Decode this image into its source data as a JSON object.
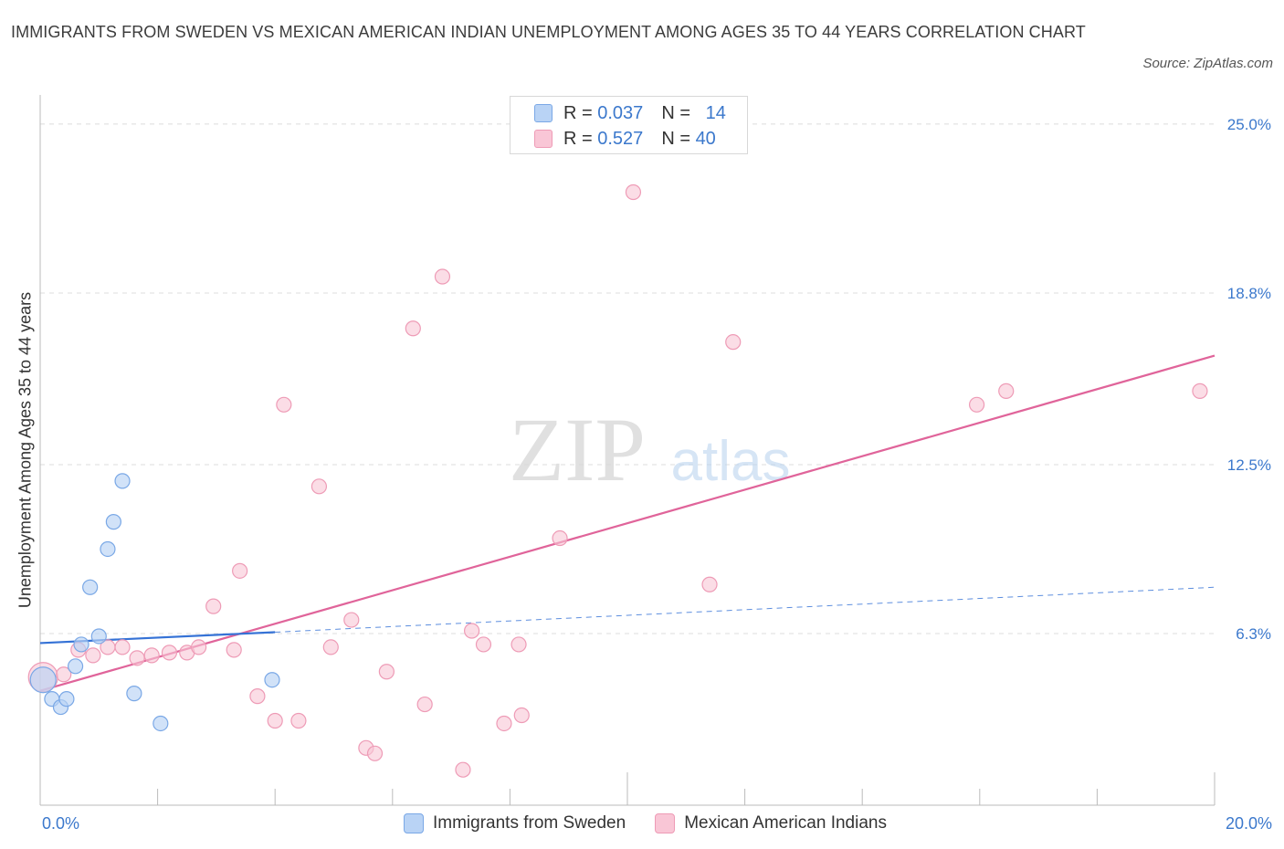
{
  "title": "IMMIGRANTS FROM SWEDEN VS MEXICAN AMERICAN INDIAN UNEMPLOYMENT AMONG AGES 35 TO 44 YEARS CORRELATION CHART",
  "source": "Source: ZipAtlas.com",
  "watermark": {
    "zip": "ZIP",
    "atlas": "atlas"
  },
  "legend_top": {
    "rows": [
      {
        "r_label": "R =",
        "r_value": "0.037",
        "n_label": "N =",
        "n_value": "14"
      },
      {
        "r_label": "R =",
        "r_value": "0.527",
        "n_label": "N =",
        "n_value": "40"
      }
    ]
  },
  "colors": {
    "blue_fill": "#b9d3f5",
    "blue_stroke": "#7aa8e6",
    "blue_line": "#3572d6",
    "pink_fill": "#f9c6d6",
    "pink_stroke": "#ee9bb6",
    "pink_line": "#e0649a",
    "accent_text": "#3b78cc",
    "grid": "#dcdcdc"
  },
  "chart_data": {
    "type": "scatter",
    "title": "IMMIGRANTS FROM SWEDEN VS MEXICAN AMERICAN INDIAN UNEMPLOYMENT AMONG AGES 35 TO 44 YEARS CORRELATION CHART",
    "xlabel": "",
    "ylabel": "Unemployment Among Ages 35 to 44 years",
    "xlim": [
      0,
      20
    ],
    "ylim": [
      0,
      25.6
    ],
    "x_tick_labels": [
      "0.0%",
      "20.0%"
    ],
    "y_ticks": [
      6.3,
      12.5,
      18.8,
      25.0
    ],
    "y_tick_labels": [
      "6.3%",
      "12.5%",
      "18.8%",
      "25.0%"
    ],
    "grid": true,
    "legend_position": "bottom-center",
    "series": [
      {
        "name": "Immigrants from Sweden",
        "color": "blue",
        "R": 0.037,
        "N": 14,
        "points": [
          [
            0.05,
            4.6
          ],
          [
            0.2,
            3.9
          ],
          [
            0.35,
            3.6
          ],
          [
            0.45,
            3.9
          ],
          [
            0.6,
            5.1
          ],
          [
            0.7,
            5.9
          ],
          [
            0.85,
            8.0
          ],
          [
            1.0,
            6.2
          ],
          [
            1.15,
            9.4
          ],
          [
            1.25,
            10.4
          ],
          [
            1.4,
            11.9
          ],
          [
            1.6,
            4.1
          ],
          [
            2.05,
            3.0
          ],
          [
            3.95,
            4.6
          ]
        ],
        "trend_solid": [
          [
            0,
            5.95
          ],
          [
            4.0,
            6.35
          ]
        ],
        "trend_dashed": [
          [
            4.0,
            6.35
          ],
          [
            20,
            8.0
          ]
        ]
      },
      {
        "name": "Mexican American Indians",
        "color": "pink",
        "R": 0.527,
        "N": 40,
        "points": [
          [
            0.05,
            4.7
          ],
          [
            0.4,
            4.8
          ],
          [
            0.65,
            5.7
          ],
          [
            0.9,
            5.5
          ],
          [
            1.15,
            5.8
          ],
          [
            1.4,
            5.8
          ],
          [
            1.65,
            5.4
          ],
          [
            1.9,
            5.5
          ],
          [
            2.2,
            5.6
          ],
          [
            2.5,
            5.6
          ],
          [
            2.7,
            5.8
          ],
          [
            2.95,
            7.3
          ],
          [
            3.3,
            5.7
          ],
          [
            3.4,
            8.6
          ],
          [
            3.7,
            4.0
          ],
          [
            4.0,
            3.1
          ],
          [
            4.15,
            14.7
          ],
          [
            4.4,
            3.1
          ],
          [
            4.75,
            11.7
          ],
          [
            4.95,
            5.8
          ],
          [
            5.3,
            6.8
          ],
          [
            5.55,
            2.1
          ],
          [
            5.7,
            1.9
          ],
          [
            5.9,
            4.9
          ],
          [
            6.35,
            17.5
          ],
          [
            6.55,
            3.7
          ],
          [
            6.85,
            19.4
          ],
          [
            7.2,
            1.3
          ],
          [
            7.35,
            6.4
          ],
          [
            7.55,
            5.9
          ],
          [
            7.9,
            3.0
          ],
          [
            8.15,
            5.9
          ],
          [
            8.2,
            3.3
          ],
          [
            8.85,
            9.8
          ],
          [
            10.1,
            22.5
          ],
          [
            11.4,
            8.1
          ],
          [
            11.8,
            17.0
          ],
          [
            15.95,
            14.7
          ],
          [
            16.45,
            15.2
          ],
          [
            19.75,
            15.2
          ]
        ],
        "trend": [
          [
            0,
            4.2
          ],
          [
            20,
            16.5
          ]
        ]
      }
    ]
  },
  "legend_bottom": {
    "items": [
      {
        "label": "Immigrants from Sweden"
      },
      {
        "label": "Mexican American Indians"
      }
    ]
  }
}
